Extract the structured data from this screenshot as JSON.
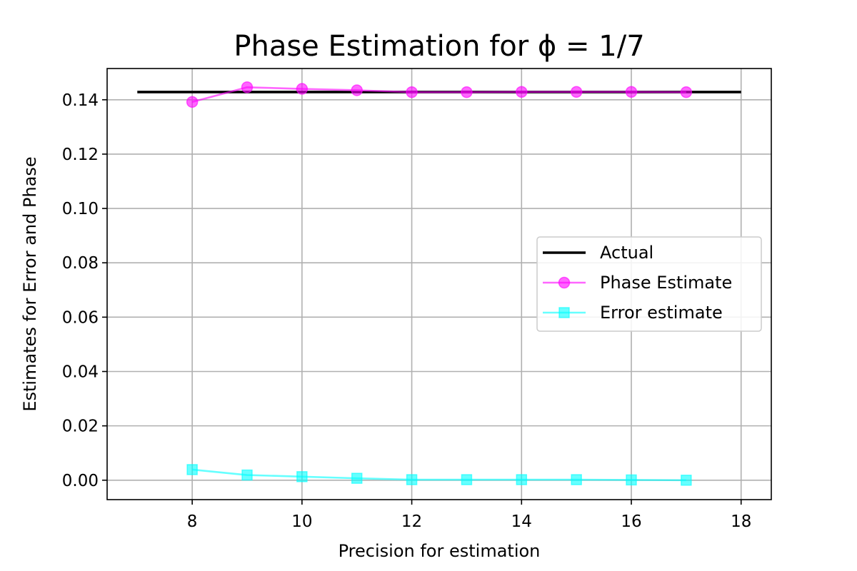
{
  "chart_data": {
    "type": "line",
    "title": "Phase Estimation for ϕ = 1/7",
    "xlabel": "Precision for estimation",
    "ylabel": "Estimates for Error and Phase",
    "xlim": [
      6.45,
      18.55
    ],
    "ylim": [
      -0.00715,
      0.1515
    ],
    "xticks": [
      8,
      10,
      12,
      14,
      16,
      18
    ],
    "xtick_labels": [
      "8",
      "10",
      "12",
      "14",
      "16",
      "18"
    ],
    "yticks": [
      0.0,
      0.02,
      0.04,
      0.06,
      0.08,
      0.1,
      0.12,
      0.14
    ],
    "ytick_labels": [
      "0.00",
      "0.02",
      "0.04",
      "0.06",
      "0.08",
      "0.10",
      "0.12",
      "0.14"
    ],
    "grid": true,
    "legend_position": "center-right",
    "series": [
      {
        "name": "Actual",
        "color": "#000000",
        "marker": "none",
        "x": [
          7,
          18
        ],
        "y": [
          0.142857,
          0.142857
        ]
      },
      {
        "name": "Phase Estimate",
        "color": "#ff00ff",
        "marker": "circle",
        "x": [
          8,
          9,
          10,
          11,
          12,
          13,
          14,
          15,
          16,
          17
        ],
        "y": [
          0.1392,
          0.1446,
          0.144,
          0.1435,
          0.1428,
          0.1428,
          0.1429,
          0.1429,
          0.1429,
          0.1428
        ]
      },
      {
        "name": "Error estimate",
        "color": "#00ffff",
        "marker": "square",
        "x": [
          8,
          9,
          10,
          11,
          12,
          13,
          14,
          15,
          16,
          17
        ],
        "y": [
          0.0039,
          0.0019,
          0.0013,
          0.0007,
          0.0002,
          0.0002,
          0.0002,
          0.0002,
          0.0001,
          0.0
        ]
      }
    ]
  }
}
